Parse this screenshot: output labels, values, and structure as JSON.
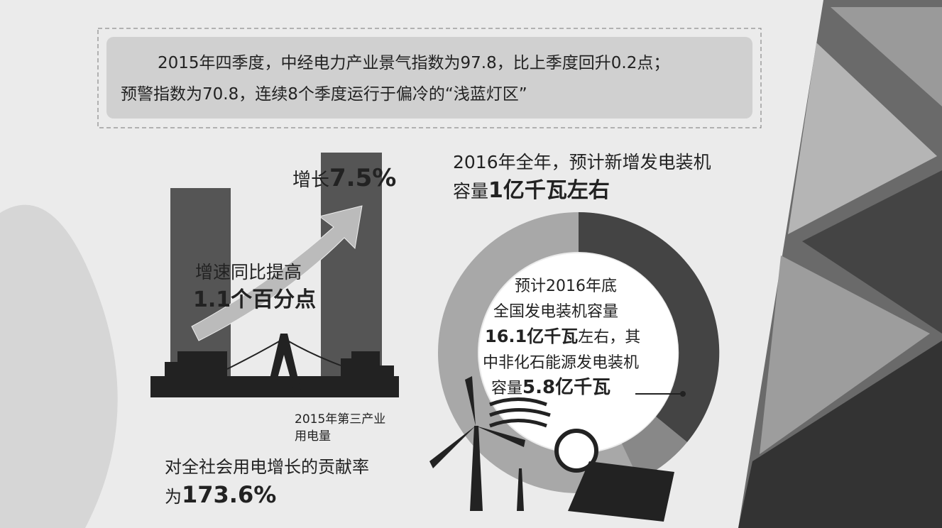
{
  "headline": {
    "line1": "2015年四季度，中经电力产业景气指数为97.8，比上季度回升0.2点；",
    "line2": "预警指数为70.8，连续8个季度运行于偏冷的“浅蓝灯区”"
  },
  "growth": {
    "label": "增长",
    "value": "7.5%"
  },
  "speedup": {
    "line1": "增速同比提高",
    "line2": "1.1个百分点"
  },
  "tertiary": {
    "caption1": "2015年第三产业",
    "caption2": "用电量",
    "contribution": "对全社会用电增长的贡献率",
    "prefix": "为",
    "value": "173.6%"
  },
  "capacity2016": {
    "line1": "2016年全年，预计新增发电装机",
    "prefix": "容量",
    "value": "1亿千瓦左右"
  },
  "donut_note": {
    "line1": "预计2016年底",
    "line2": "全国发电装机容量",
    "line3_bold": "16.1亿千瓦",
    "line3_rest": "左右，其",
    "line4": "中非化石能源发电装机",
    "line5_prefix": "容量",
    "line5_bold": "5.8亿千瓦"
  }
}
